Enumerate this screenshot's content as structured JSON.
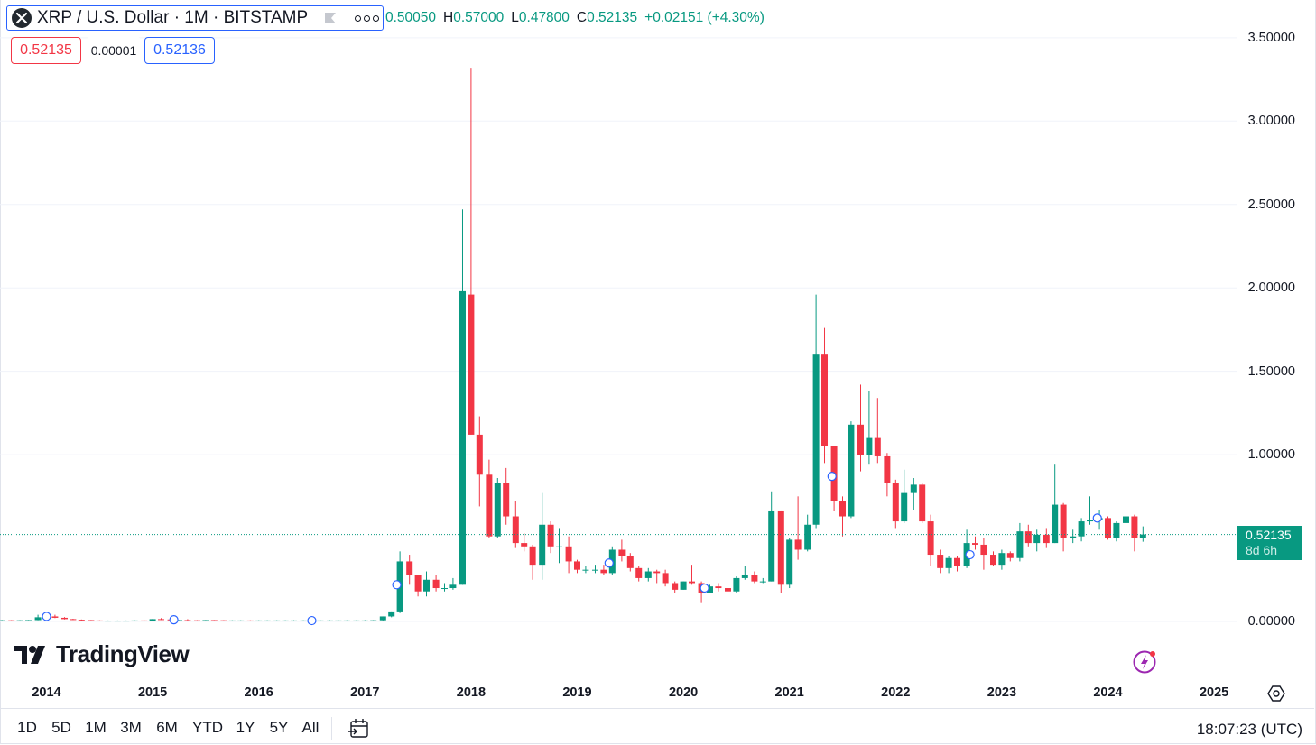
{
  "header": {
    "symbol_title": "XRP / U.S. Dollar · 1M · BITSTAMP",
    "ohlc": {
      "o_label": "O",
      "o": "0.50050",
      "h_label": "H",
      "h": "0.57000",
      "l_label": "L",
      "l": "0.47800",
      "c_label": "C",
      "c": "0.52135",
      "change": "+0.02151 (+4.30%)"
    },
    "sell_price": "0.52135",
    "spread": "0.00001",
    "buy_price": "0.52136"
  },
  "price_tag": {
    "price": "0.52135",
    "countdown": "8d 6h"
  },
  "branding": {
    "logo_text": "TradingView"
  },
  "toolbar": {
    "ranges": [
      "1D",
      "5D",
      "1M",
      "3M",
      "6M",
      "YTD",
      "1Y",
      "5Y",
      "All"
    ],
    "clock": "18:07:23 (UTC)"
  },
  "colors": {
    "up": "#089981",
    "down": "#f23645",
    "accent": "#2962ff",
    "grid": "#f0f3fa"
  },
  "chart_data": {
    "type": "candlestick",
    "title": "XRP / U.S. Dollar · 1M · BITSTAMP",
    "yticks": [
      "0.00000",
      "0.50000",
      "1.00000",
      "1.50000",
      "2.00000",
      "2.50000",
      "3.00000",
      "3.50000"
    ],
    "ylim": [
      0,
      3.5
    ],
    "xticks": [
      "2014",
      "2015",
      "2016",
      "2017",
      "2018",
      "2019",
      "2020",
      "2021",
      "2022",
      "2023",
      "2024",
      "2025"
    ],
    "last_price": 0.52135,
    "grid": true,
    "markers": [
      [
        2014.0,
        0.03
      ],
      [
        2015.2,
        0.01
      ],
      [
        2016.5,
        0.005
      ],
      [
        2017.3,
        0.22
      ],
      [
        2019.3,
        0.35
      ],
      [
        2020.2,
        0.2
      ],
      [
        2021.4,
        0.87
      ],
      [
        2022.7,
        0.4
      ],
      [
        2023.9,
        0.62
      ]
    ],
    "ohlc": [
      [
        2013.58,
        0.006,
        0.009,
        0.005,
        0.007
      ],
      [
        2013.67,
        0.007,
        0.008,
        0.005,
        0.006
      ],
      [
        2013.75,
        0.006,
        0.008,
        0.005,
        0.007
      ],
      [
        2013.83,
        0.007,
        0.009,
        0.006,
        0.008
      ],
      [
        2013.92,
        0.008,
        0.04,
        0.007,
        0.025
      ],
      [
        2014.0,
        0.025,
        0.04,
        0.02,
        0.03
      ],
      [
        2014.08,
        0.03,
        0.04,
        0.02,
        0.022
      ],
      [
        2014.17,
        0.022,
        0.026,
        0.012,
        0.014
      ],
      [
        2014.25,
        0.014,
        0.016,
        0.009,
        0.01
      ],
      [
        2014.33,
        0.01,
        0.012,
        0.006,
        0.008
      ],
      [
        2014.42,
        0.008,
        0.009,
        0.005,
        0.006
      ],
      [
        2014.5,
        0.006,
        0.007,
        0.004,
        0.005
      ],
      [
        2014.58,
        0.005,
        0.006,
        0.004,
        0.005
      ],
      [
        2014.67,
        0.005,
        0.006,
        0.004,
        0.005
      ],
      [
        2014.75,
        0.005,
        0.006,
        0.004,
        0.005
      ],
      [
        2014.83,
        0.005,
        0.007,
        0.004,
        0.006
      ],
      [
        2014.92,
        0.006,
        0.007,
        0.004,
        0.005
      ],
      [
        2015.0,
        0.005,
        0.015,
        0.005,
        0.014
      ],
      [
        2015.08,
        0.014,
        0.02,
        0.009,
        0.012
      ],
      [
        2015.17,
        0.012,
        0.014,
        0.006,
        0.007
      ],
      [
        2015.25,
        0.007,
        0.009,
        0.005,
        0.008
      ],
      [
        2015.33,
        0.008,
        0.014,
        0.006,
        0.007
      ],
      [
        2015.42,
        0.007,
        0.008,
        0.005,
        0.006
      ],
      [
        2015.5,
        0.006,
        0.009,
        0.005,
        0.008
      ],
      [
        2015.58,
        0.008,
        0.009,
        0.006,
        0.007
      ],
      [
        2015.67,
        0.007,
        0.008,
        0.005,
        0.006
      ],
      [
        2015.75,
        0.006,
        0.007,
        0.005,
        0.006
      ],
      [
        2015.83,
        0.006,
        0.007,
        0.005,
        0.006
      ],
      [
        2015.92,
        0.006,
        0.007,
        0.004,
        0.005
      ],
      [
        2016.0,
        0.005,
        0.007,
        0.004,
        0.006
      ],
      [
        2016.08,
        0.006,
        0.007,
        0.005,
        0.006
      ],
      [
        2016.17,
        0.006,
        0.007,
        0.005,
        0.006
      ],
      [
        2016.25,
        0.006,
        0.007,
        0.005,
        0.006
      ],
      [
        2016.33,
        0.006,
        0.007,
        0.005,
        0.006
      ],
      [
        2016.42,
        0.006,
        0.007,
        0.005,
        0.006
      ],
      [
        2016.5,
        0.006,
        0.007,
        0.005,
        0.006
      ],
      [
        2016.58,
        0.006,
        0.007,
        0.005,
        0.006
      ],
      [
        2016.67,
        0.006,
        0.007,
        0.005,
        0.006
      ],
      [
        2016.75,
        0.006,
        0.007,
        0.005,
        0.006
      ],
      [
        2016.83,
        0.006,
        0.007,
        0.005,
        0.006
      ],
      [
        2016.92,
        0.006,
        0.007,
        0.005,
        0.006
      ],
      [
        2017.0,
        0.006,
        0.008,
        0.005,
        0.006
      ],
      [
        2017.08,
        0.006,
        0.008,
        0.005,
        0.007
      ],
      [
        2017.17,
        0.007,
        0.03,
        0.006,
        0.03
      ],
      [
        2017.25,
        0.03,
        0.06,
        0.025,
        0.06
      ],
      [
        2017.33,
        0.06,
        0.42,
        0.05,
        0.36
      ],
      [
        2017.42,
        0.36,
        0.4,
        0.22,
        0.28
      ],
      [
        2017.5,
        0.28,
        0.28,
        0.15,
        0.18
      ],
      [
        2017.58,
        0.18,
        0.3,
        0.15,
        0.25
      ],
      [
        2017.67,
        0.25,
        0.28,
        0.18,
        0.2
      ],
      [
        2017.75,
        0.2,
        0.23,
        0.18,
        0.2
      ],
      [
        2017.83,
        0.2,
        0.26,
        0.19,
        0.22
      ],
      [
        2017.92,
        0.22,
        2.47,
        0.22,
        1.98
      ],
      [
        2018.0,
        1.96,
        3.32,
        1.12,
        1.12
      ],
      [
        2018.08,
        1.12,
        1.23,
        0.69,
        0.88
      ],
      [
        2018.17,
        0.88,
        0.97,
        0.5,
        0.51
      ],
      [
        2018.25,
        0.51,
        0.86,
        0.5,
        0.83
      ],
      [
        2018.33,
        0.83,
        0.92,
        0.58,
        0.63
      ],
      [
        2018.42,
        0.63,
        0.72,
        0.44,
        0.47
      ],
      [
        2018.5,
        0.47,
        0.53,
        0.42,
        0.45
      ],
      [
        2018.58,
        0.45,
        0.46,
        0.25,
        0.34
      ],
      [
        2018.67,
        0.34,
        0.77,
        0.25,
        0.58
      ],
      [
        2018.75,
        0.58,
        0.6,
        0.41,
        0.45
      ],
      [
        2018.83,
        0.45,
        0.56,
        0.35,
        0.45
      ],
      [
        2018.92,
        0.45,
        0.51,
        0.29,
        0.36
      ],
      [
        2019.0,
        0.36,
        0.37,
        0.29,
        0.31
      ],
      [
        2019.08,
        0.31,
        0.33,
        0.29,
        0.31
      ],
      [
        2019.17,
        0.31,
        0.34,
        0.29,
        0.31
      ],
      [
        2019.25,
        0.31,
        0.34,
        0.28,
        0.29
      ],
      [
        2019.33,
        0.29,
        0.45,
        0.28,
        0.43
      ],
      [
        2019.42,
        0.43,
        0.49,
        0.36,
        0.39
      ],
      [
        2019.5,
        0.39,
        0.41,
        0.3,
        0.32
      ],
      [
        2019.58,
        0.32,
        0.33,
        0.24,
        0.26
      ],
      [
        2019.67,
        0.26,
        0.32,
        0.24,
        0.3
      ],
      [
        2019.75,
        0.3,
        0.31,
        0.23,
        0.29
      ],
      [
        2019.83,
        0.29,
        0.31,
        0.21,
        0.23
      ],
      [
        2019.92,
        0.23,
        0.24,
        0.17,
        0.19
      ],
      [
        2020.0,
        0.19,
        0.24,
        0.19,
        0.24
      ],
      [
        2020.08,
        0.24,
        0.34,
        0.22,
        0.23
      ],
      [
        2020.17,
        0.23,
        0.24,
        0.11,
        0.17
      ],
      [
        2020.25,
        0.17,
        0.22,
        0.17,
        0.21
      ],
      [
        2020.33,
        0.21,
        0.23,
        0.18,
        0.2
      ],
      [
        2020.42,
        0.2,
        0.21,
        0.17,
        0.18
      ],
      [
        2020.5,
        0.18,
        0.27,
        0.17,
        0.26
      ],
      [
        2020.58,
        0.26,
        0.33,
        0.25,
        0.28
      ],
      [
        2020.67,
        0.28,
        0.3,
        0.23,
        0.24
      ],
      [
        2020.75,
        0.24,
        0.26,
        0.23,
        0.24
      ],
      [
        2020.83,
        0.24,
        0.78,
        0.24,
        0.66
      ],
      [
        2020.92,
        0.66,
        0.66,
        0.17,
        0.22
      ],
      [
        2021.0,
        0.22,
        0.5,
        0.2,
        0.49
      ],
      [
        2021.08,
        0.49,
        0.75,
        0.37,
        0.43
      ],
      [
        2021.17,
        0.43,
        0.64,
        0.42,
        0.58
      ],
      [
        2021.25,
        0.58,
        1.96,
        0.56,
        1.6
      ],
      [
        2021.33,
        1.6,
        1.76,
        0.95,
        1.05
      ],
      [
        2021.42,
        1.05,
        1.04,
        0.66,
        0.72
      ],
      [
        2021.5,
        0.72,
        0.75,
        0.51,
        0.63
      ],
      [
        2021.58,
        0.63,
        1.2,
        0.62,
        1.18
      ],
      [
        2021.67,
        1.18,
        1.42,
        0.9,
        1.0
      ],
      [
        2021.75,
        1.0,
        1.38,
        0.94,
        1.1
      ],
      [
        2021.83,
        1.1,
        1.34,
        0.95,
        0.99
      ],
      [
        2021.92,
        0.99,
        1.01,
        0.75,
        0.83
      ],
      [
        2022.0,
        0.83,
        0.85,
        0.56,
        0.6
      ],
      [
        2022.08,
        0.6,
        0.91,
        0.59,
        0.77
      ],
      [
        2022.17,
        0.77,
        0.86,
        0.67,
        0.82
      ],
      [
        2022.25,
        0.82,
        0.83,
        0.59,
        0.6
      ],
      [
        2022.33,
        0.6,
        0.64,
        0.33,
        0.4
      ],
      [
        2022.42,
        0.4,
        0.43,
        0.29,
        0.32
      ],
      [
        2022.5,
        0.32,
        0.39,
        0.29,
        0.38
      ],
      [
        2022.58,
        0.38,
        0.39,
        0.3,
        0.33
      ],
      [
        2022.67,
        0.33,
        0.55,
        0.32,
        0.47
      ],
      [
        2022.75,
        0.47,
        0.51,
        0.43,
        0.46
      ],
      [
        2022.83,
        0.46,
        0.5,
        0.31,
        0.4
      ],
      [
        2022.92,
        0.4,
        0.42,
        0.33,
        0.34
      ],
      [
        2023.0,
        0.34,
        0.43,
        0.31,
        0.41
      ],
      [
        2023.08,
        0.41,
        0.42,
        0.36,
        0.38
      ],
      [
        2023.17,
        0.38,
        0.59,
        0.36,
        0.54
      ],
      [
        2023.25,
        0.54,
        0.58,
        0.45,
        0.47
      ],
      [
        2023.33,
        0.47,
        0.55,
        0.42,
        0.52
      ],
      [
        2023.42,
        0.52,
        0.56,
        0.44,
        0.47
      ],
      [
        2023.5,
        0.47,
        0.94,
        0.47,
        0.7
      ],
      [
        2023.58,
        0.7,
        0.71,
        0.42,
        0.5
      ],
      [
        2023.67,
        0.5,
        0.55,
        0.47,
        0.51
      ],
      [
        2023.75,
        0.51,
        0.62,
        0.48,
        0.6
      ],
      [
        2023.83,
        0.6,
        0.75,
        0.58,
        0.61
      ],
      [
        2023.92,
        0.61,
        0.67,
        0.55,
        0.62
      ],
      [
        2024.0,
        0.62,
        0.63,
        0.49,
        0.5
      ],
      [
        2024.08,
        0.5,
        0.6,
        0.48,
        0.59
      ],
      [
        2024.17,
        0.59,
        0.74,
        0.57,
        0.63
      ],
      [
        2024.25,
        0.63,
        0.64,
        0.42,
        0.5
      ],
      [
        2024.33,
        0.5,
        0.57,
        0.478,
        0.52135
      ]
    ]
  }
}
